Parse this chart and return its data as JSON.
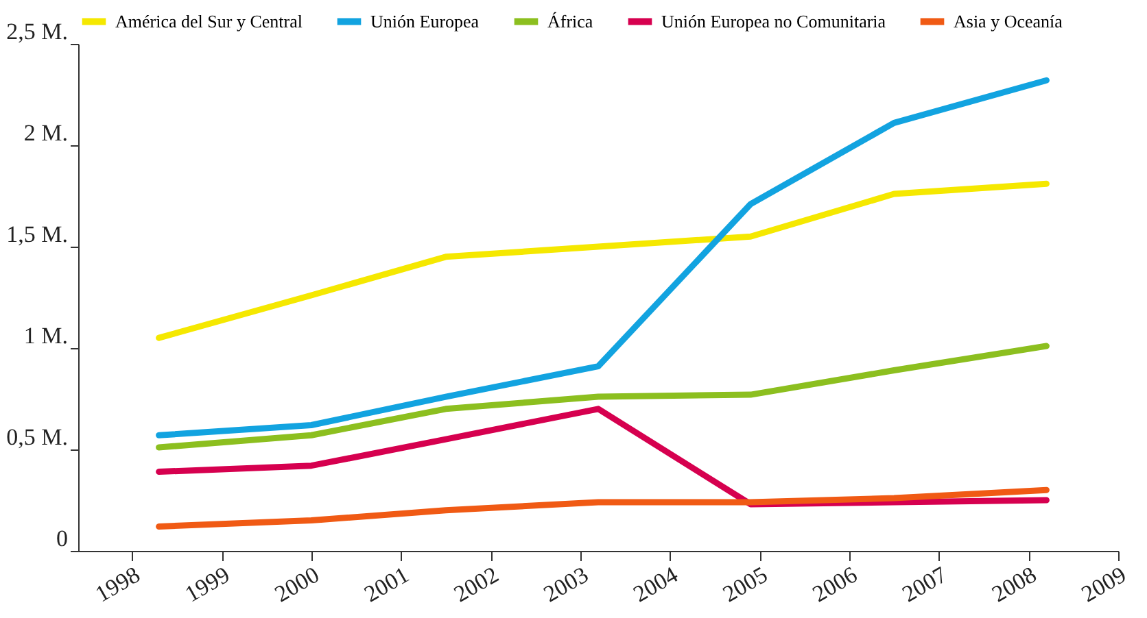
{
  "chart_data": {
    "type": "line",
    "legend": "top",
    "grid": false,
    "marker": "none",
    "line_style": "solid",
    "xlim": [
      1997.4,
      2009
    ],
    "xticks": [
      1998,
      1999,
      2000,
      2001,
      2002,
      2003,
      2004,
      2005,
      2006,
      2007,
      2008,
      2009
    ],
    "ylim": [
      0,
      2.5
    ],
    "yticks": [
      {
        "value": 0,
        "label": "0"
      },
      {
        "value": 0.5,
        "label": "0,5 M."
      },
      {
        "value": 1,
        "label": "1 M."
      },
      {
        "value": 1.5,
        "label": "1,5 M."
      },
      {
        "value": 2,
        "label": "2 M."
      },
      {
        "value": 2.5,
        "label": "2,5 M."
      }
    ],
    "x": [
      1998.3,
      2000,
      2001.5,
      2003.2,
      2004.9,
      2006.5,
      2008.2
    ],
    "series": [
      {
        "name": "América del Sur y Central",
        "color": "#f5e800",
        "values": [
          1.05,
          1.26,
          1.45,
          1.5,
          1.55,
          1.76,
          1.81
        ]
      },
      {
        "name": "Unión Europea",
        "color": "#12a3e0",
        "values": [
          0.57,
          0.62,
          0.76,
          0.91,
          1.71,
          2.11,
          2.32
        ]
      },
      {
        "name": "África",
        "color": "#8cbf1f",
        "values": [
          0.51,
          0.57,
          0.7,
          0.76,
          0.77,
          0.89,
          1.01
        ]
      },
      {
        "name": "Unión Europea no Comunitaria",
        "color": "#d6004f",
        "values": [
          0.39,
          0.42,
          0.55,
          0.7,
          0.23,
          0.24,
          0.25
        ]
      },
      {
        "name": "Asia y Oceanía",
        "color": "#f05a14",
        "values": [
          0.12,
          0.15,
          0.2,
          0.24,
          0.24,
          0.26,
          0.3
        ]
      }
    ]
  }
}
